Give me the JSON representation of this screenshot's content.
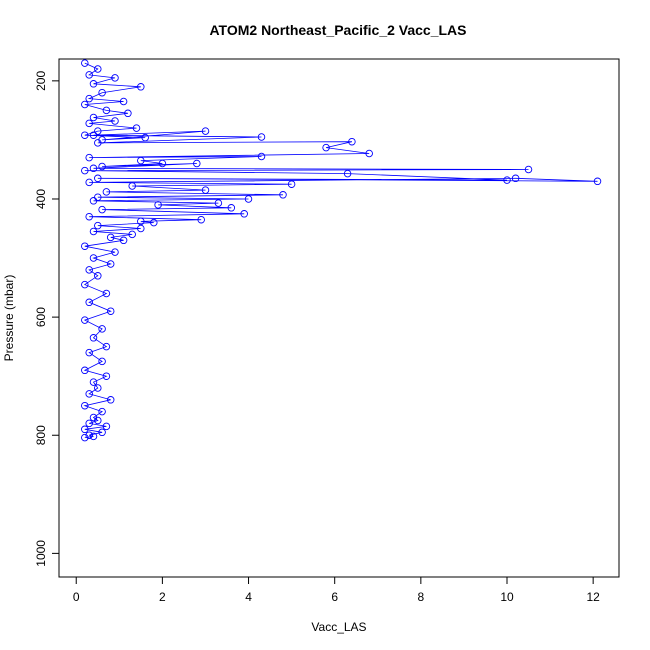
{
  "chart_data": {
    "type": "scatter",
    "title": "ATOM2 Northeast_Pacific_2 Vacc_LAS",
    "xlabel": "Vacc_LAS",
    "ylabel": "Pressure (mbar)",
    "xlim": [
      -0.4,
      12.6
    ],
    "ylim": [
      1040,
      163
    ],
    "y_reversed": true,
    "x_ticks": [
      0,
      2,
      4,
      6,
      8,
      10,
      12
    ],
    "y_ticks": [
      200,
      400,
      600,
      800,
      1000
    ],
    "grid": false,
    "legend": "none",
    "series": [
      {
        "style": "points-and-lines",
        "color": "#0000ff",
        "marker": "open-circle",
        "x": [
          0.2,
          0.5,
          0.3,
          0.9,
          0.4,
          1.5,
          0.6,
          0.3,
          1.1,
          0.2,
          0.7,
          1.2,
          0.4,
          0.9,
          0.3,
          1.4,
          0.5,
          0.2,
          1.6,
          0.6,
          3.0,
          0.4,
          4.3,
          0.5,
          6.4,
          5.8,
          6.8,
          0.3,
          4.3,
          1.5,
          2.0,
          0.6,
          2.8,
          0.4,
          10.5,
          0.2,
          6.3,
          10.0,
          0.5,
          12.1,
          10.2,
          0.3,
          5.0,
          1.3,
          3.0,
          0.7,
          4.8,
          0.5,
          4.0,
          0.4,
          3.3,
          1.9,
          3.6,
          0.6,
          3.9,
          0.3,
          2.9,
          1.5,
          1.8,
          0.5,
          1.5,
          0.4,
          1.3,
          0.8,
          1.1,
          0.2,
          0.9,
          0.4,
          0.8,
          0.3,
          0.5,
          0.2,
          0.7,
          0.3,
          0.8,
          0.2,
          0.6,
          0.4,
          0.7,
          0.3,
          0.6,
          0.2,
          0.7,
          0.4,
          0.5,
          0.3,
          0.8,
          0.2,
          0.6,
          0.4,
          0.5,
          0.3,
          0.7,
          0.2,
          0.6,
          0.3,
          0.4,
          0.2
        ],
        "y": [
          170,
          180,
          190,
          195,
          205,
          210,
          220,
          230,
          235,
          240,
          250,
          255,
          262,
          268,
          272,
          280,
          285,
          292,
          296,
          300,
          285,
          292,
          295,
          305,
          303,
          313,
          323,
          330,
          328,
          335,
          340,
          345,
          340,
          348,
          350,
          352,
          357,
          368,
          365,
          370,
          365,
          372,
          375,
          378,
          385,
          388,
          393,
          397,
          400,
          403,
          407,
          410,
          415,
          418,
          425,
          430,
          435,
          438,
          440,
          445,
          450,
          455,
          460,
          465,
          470,
          480,
          490,
          500,
          510,
          520,
          530,
          545,
          560,
          575,
          590,
          605,
          620,
          635,
          650,
          660,
          675,
          690,
          700,
          710,
          720,
          730,
          740,
          750,
          760,
          770,
          775,
          780,
          785,
          790,
          795,
          800,
          802,
          804
        ]
      }
    ]
  }
}
